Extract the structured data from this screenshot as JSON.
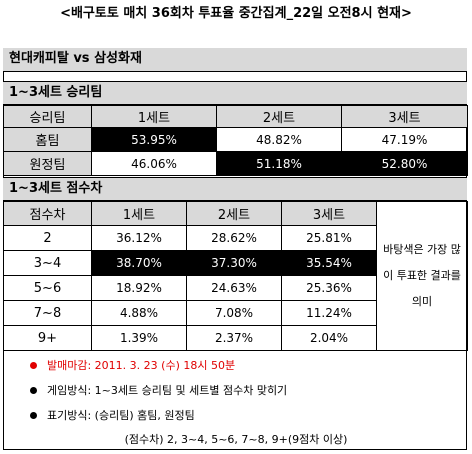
{
  "title": "<배구토토 매치 36회차 투표율 중간집계_22일 오전8시 현재>",
  "match": "현대캐피탈 vs 삼성화재",
  "section1": {
    "heading": "1~3세트 승리팀",
    "headers": [
      "승리팀",
      "1세트",
      "2세트",
      "3세트"
    ],
    "rows": [
      {
        "label": "홈팀",
        "values": [
          "53.95%",
          "48.82%",
          "47.19%"
        ]
      },
      {
        "label": "원정팀",
        "values": [
          "46.06%",
          "51.18%",
          "52.80%"
        ]
      }
    ]
  },
  "section2": {
    "heading": "1~3세트 점수차",
    "headers": [
      "점수차",
      "1세트",
      "2세트",
      "3세트"
    ],
    "rows": [
      {
        "label": "2",
        "values": [
          "36.12%",
          "28.62%",
          "25.81%"
        ]
      },
      {
        "label": "3~4",
        "values": [
          "38.70%",
          "37.30%",
          "35.54%"
        ]
      },
      {
        "label": "5~6",
        "values": [
          "18.92%",
          "24.63%",
          "25.36%"
        ]
      },
      {
        "label": "7~8",
        "values": [
          "4.88%",
          "7.08%",
          "11.24%"
        ]
      },
      {
        "label": "9+",
        "values": [
          "1.39%",
          "2.37%",
          "2.04%"
        ]
      }
    ],
    "note": "바탕색은 가장 많이 투표한 결과를 의미"
  },
  "info": {
    "deadline": "발매마감: 2011. 3. 23 (수) 18시 50분",
    "method": "게임방식: 1~3세트 승리팀 및 세트별 점수차 맞히기",
    "notation": "표기방식: (승리팀) 홈팀, 원정팀",
    "footer": "(점수차) 2, 3~4, 5~6, 7~8, 9+(9점차 이상)"
  },
  "colors": {
    "highlight": "#000000",
    "header_bg": "#d9d9d9",
    "deadline": "#e00000"
  }
}
